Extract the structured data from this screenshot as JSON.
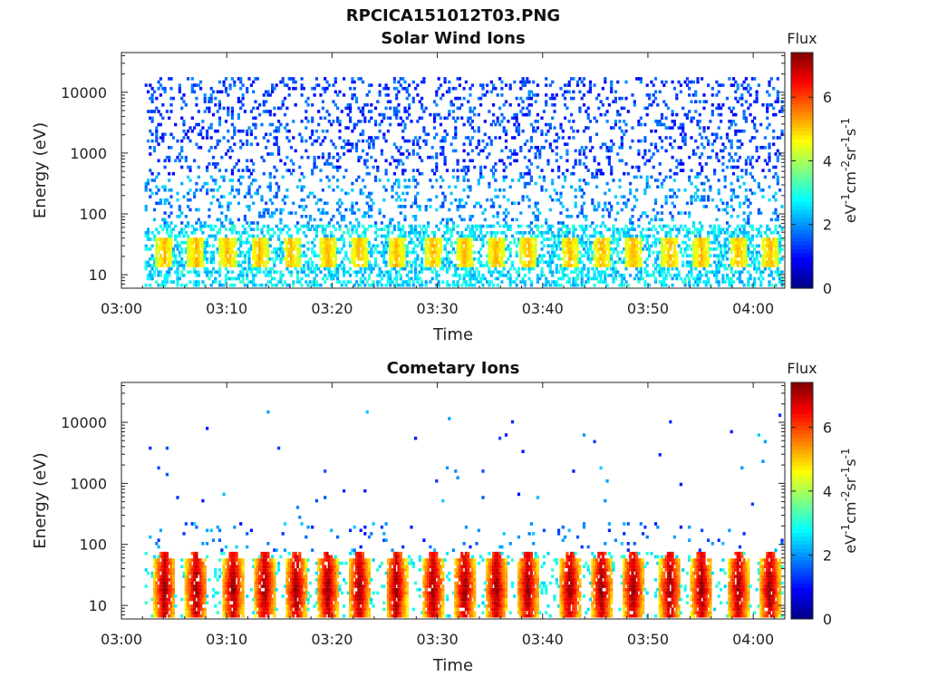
{
  "figure": {
    "title": "RPCICA151012T03.PNG"
  },
  "chart_data": [
    {
      "type": "heatmap",
      "title": "Solar Wind Ions",
      "xlabel": "Time",
      "ylabel": "Energy (eV)",
      "x_ticks": [
        "03:00",
        "03:10",
        "03:20",
        "03:30",
        "03:40",
        "03:50",
        "04:00"
      ],
      "x_range_minutes": [
        0,
        63
      ],
      "y_scale": "log",
      "y_ticks": [
        "10",
        "100",
        "1000",
        "10000"
      ],
      "y_range_eV": [
        6,
        45000
      ],
      "colorbar": {
        "label": "Flux",
        "unit_label": "eV-1cm-2sr-1s-1",
        "ticks": [
          "0",
          "2",
          "4",
          "6"
        ],
        "range": [
          0,
          7.4
        ],
        "colormap": "jet"
      },
      "data_start_minutes": 2.2,
      "data_end_minutes": 62.7,
      "bursts_minutes": [
        4.0,
        7.0,
        10.0,
        13.0,
        16.0,
        19.5,
        22.5,
        26.0,
        29.5,
        32.5,
        35.5,
        38.5,
        42.5,
        45.5,
        48.5,
        52.0,
        55.0,
        58.5,
        61.5
      ],
      "peak_flux": 5.0,
      "background": "sparse low-flux counts spanning 10 eV to 15000 eV"
    },
    {
      "type": "heatmap",
      "title": "Cometary Ions",
      "xlabel": "Time",
      "ylabel": "Energy (eV)",
      "x_ticks": [
        "03:00",
        "03:10",
        "03:20",
        "03:30",
        "03:40",
        "03:50",
        "04:00"
      ],
      "x_range_minutes": [
        0,
        63
      ],
      "y_scale": "log",
      "y_ticks": [
        "10",
        "100",
        "1000",
        "10000"
      ],
      "y_range_eV": [
        6,
        45000
      ],
      "colorbar": {
        "label": "Flux",
        "unit_label": "eV-1cm-2sr-1s-1",
        "ticks": [
          "0",
          "2",
          "4",
          "6"
        ],
        "range": [
          0,
          7.4
        ],
        "colormap": "jet"
      },
      "data_start_minutes": 2.2,
      "data_end_minutes": 62.7,
      "bursts_minutes": [
        4.0,
        7.0,
        10.5,
        13.5,
        16.5,
        19.5,
        22.5,
        26.0,
        29.5,
        32.5,
        35.5,
        38.5,
        42.5,
        45.5,
        48.5,
        52.0,
        55.0,
        58.5,
        61.5
      ],
      "peak_flux": 7.2,
      "background": "sparse isolated counts above 100 eV, dense bursts below 60 eV"
    }
  ]
}
